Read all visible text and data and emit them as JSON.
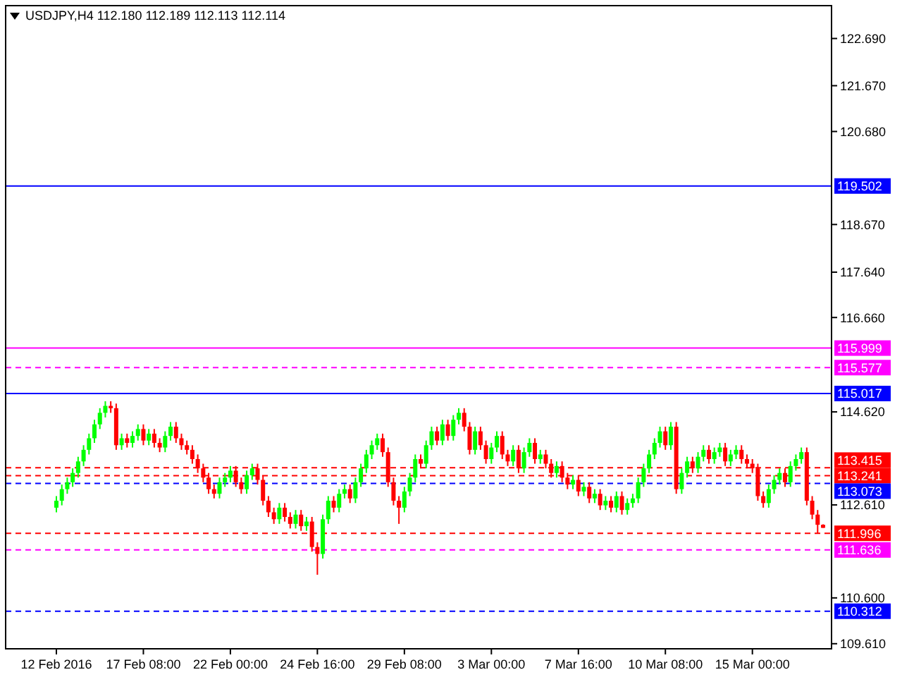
{
  "chart_data": {
    "type": "candlestick",
    "title": "USDJPY,H4  112.180 112.189 112.113 112.114",
    "categories": [
      "12 Feb 2016",
      null,
      null,
      null,
      null,
      null,
      null,
      null,
      null,
      null,
      null,
      null,
      null,
      null,
      null,
      null,
      "17 Feb 08:00",
      null,
      null,
      null,
      null,
      null,
      null,
      null,
      null,
      null,
      null,
      null,
      null,
      null,
      null,
      null,
      "22 Feb 00:00",
      null,
      null,
      null,
      null,
      null,
      null,
      null,
      null,
      null,
      null,
      null,
      null,
      null,
      null,
      null,
      "24 Feb 16:00",
      null,
      null,
      null,
      null,
      null,
      null,
      null,
      null,
      null,
      null,
      null,
      null,
      null,
      null,
      null,
      "29 Feb 08:00",
      null,
      null,
      null,
      null,
      null,
      null,
      null,
      null,
      null,
      null,
      null,
      null,
      null,
      null,
      null,
      "3 Mar 00:00",
      null,
      null,
      null,
      null,
      null,
      null,
      null,
      null,
      null,
      null,
      null,
      null,
      null,
      null,
      null,
      "7 Mar 16:00",
      null,
      null,
      null,
      null,
      null,
      null,
      null,
      null,
      null,
      null,
      null,
      null,
      null,
      null,
      null,
      "10 Mar 08:00",
      null,
      null,
      null,
      null,
      null,
      null,
      null,
      null,
      null,
      null,
      null,
      null,
      null,
      null,
      null,
      "15 Mar 00:00",
      null,
      null,
      null,
      null,
      null,
      null,
      null,
      null,
      null,
      null,
      null,
      null,
      null
    ],
    "ohlc": [
      [
        112.55,
        112.8,
        112.45,
        112.7
      ],
      [
        112.7,
        113.05,
        112.6,
        112.95
      ],
      [
        112.95,
        113.2,
        112.85,
        113.1
      ],
      [
        113.1,
        113.4,
        113.0,
        113.3
      ],
      [
        113.3,
        113.65,
        113.2,
        113.55
      ],
      [
        113.55,
        113.9,
        113.45,
        113.8
      ],
      [
        113.8,
        114.15,
        113.7,
        114.05
      ],
      [
        114.05,
        114.45,
        113.95,
        114.35
      ],
      [
        114.35,
        114.7,
        114.25,
        114.6
      ],
      [
        114.6,
        114.85,
        114.5,
        114.75
      ],
      [
        114.75,
        114.85,
        114.6,
        114.7
      ],
      [
        114.7,
        114.8,
        113.8,
        113.9
      ],
      [
        113.9,
        114.15,
        113.8,
        114.05
      ],
      [
        114.05,
        114.15,
        113.85,
        113.95
      ],
      [
        113.95,
        114.2,
        113.85,
        114.1
      ],
      [
        114.1,
        114.35,
        114.0,
        114.25
      ],
      [
        114.25,
        114.35,
        113.9,
        114.0
      ],
      [
        114.0,
        114.25,
        113.9,
        114.15
      ],
      [
        114.15,
        114.25,
        113.85,
        113.95
      ],
      [
        113.95,
        114.05,
        113.75,
        113.85
      ],
      [
        113.85,
        114.2,
        113.75,
        114.1
      ],
      [
        114.1,
        114.4,
        114.0,
        114.3
      ],
      [
        114.3,
        114.4,
        113.95,
        114.05
      ],
      [
        114.05,
        114.15,
        113.8,
        113.9
      ],
      [
        113.9,
        114.0,
        113.7,
        113.8
      ],
      [
        113.8,
        113.9,
        113.5,
        113.6
      ],
      [
        113.6,
        113.7,
        113.3,
        113.4
      ],
      [
        113.4,
        113.5,
        113.1,
        113.2
      ],
      [
        113.2,
        113.3,
        112.85,
        112.95
      ],
      [
        112.95,
        113.05,
        112.75,
        112.85
      ],
      [
        112.85,
        113.2,
        112.75,
        113.1
      ],
      [
        113.1,
        113.3,
        113.0,
        113.2
      ],
      [
        113.2,
        113.45,
        113.1,
        113.35
      ],
      [
        113.35,
        113.45,
        113.0,
        113.1
      ],
      [
        113.1,
        113.2,
        112.85,
        112.95
      ],
      [
        112.95,
        113.35,
        112.85,
        113.25
      ],
      [
        113.25,
        113.5,
        113.15,
        113.4
      ],
      [
        113.4,
        113.5,
        113.05,
        113.15
      ],
      [
        113.15,
        113.25,
        112.6,
        112.7
      ],
      [
        112.7,
        112.8,
        112.35,
        112.45
      ],
      [
        112.45,
        112.55,
        112.2,
        112.3
      ],
      [
        112.3,
        112.65,
        112.2,
        112.55
      ],
      [
        112.55,
        112.65,
        112.25,
        112.35
      ],
      [
        112.35,
        112.45,
        112.1,
        112.2
      ],
      [
        112.2,
        112.5,
        112.1,
        112.4
      ],
      [
        112.4,
        112.5,
        112.05,
        112.15
      ],
      [
        112.15,
        112.35,
        112.05,
        112.25
      ],
      [
        112.25,
        112.35,
        111.6,
        111.7
      ],
      [
        111.7,
        111.8,
        111.1,
        111.55
      ],
      [
        111.55,
        112.4,
        111.45,
        112.3
      ],
      [
        112.3,
        112.8,
        112.2,
        112.7
      ],
      [
        112.7,
        112.8,
        112.45,
        112.55
      ],
      [
        112.55,
        112.95,
        112.45,
        112.85
      ],
      [
        112.85,
        113.05,
        112.75,
        112.95
      ],
      [
        112.95,
        113.05,
        112.65,
        112.75
      ],
      [
        112.75,
        113.2,
        112.65,
        113.1
      ],
      [
        113.1,
        113.5,
        113.0,
        113.4
      ],
      [
        113.4,
        113.8,
        113.3,
        113.7
      ],
      [
        113.7,
        114.0,
        113.6,
        113.9
      ],
      [
        113.9,
        114.15,
        113.8,
        114.05
      ],
      [
        114.05,
        114.15,
        113.65,
        113.75
      ],
      [
        113.75,
        113.85,
        113.0,
        113.1
      ],
      [
        113.1,
        113.2,
        112.6,
        112.7
      ],
      [
        112.7,
        112.8,
        112.2,
        112.55
      ],
      [
        112.55,
        113.0,
        112.45,
        112.9
      ],
      [
        112.9,
        113.3,
        112.8,
        113.2
      ],
      [
        113.2,
        113.7,
        113.1,
        113.6
      ],
      [
        113.6,
        113.7,
        113.4,
        113.5
      ],
      [
        113.5,
        114.0,
        113.4,
        113.9
      ],
      [
        113.9,
        114.3,
        113.8,
        114.2
      ],
      [
        114.2,
        114.3,
        113.9,
        114.0
      ],
      [
        114.0,
        114.45,
        113.9,
        114.35
      ],
      [
        114.35,
        114.45,
        114.0,
        114.1
      ],
      [
        114.1,
        114.55,
        114.0,
        114.45
      ],
      [
        114.45,
        114.7,
        114.35,
        114.6
      ],
      [
        114.6,
        114.7,
        114.2,
        114.3
      ],
      [
        114.3,
        114.4,
        113.7,
        113.8
      ],
      [
        113.8,
        114.3,
        113.7,
        114.2
      ],
      [
        114.2,
        114.3,
        113.8,
        113.9
      ],
      [
        113.9,
        114.0,
        113.5,
        113.6
      ],
      [
        113.6,
        113.95,
        113.5,
        113.85
      ],
      [
        113.85,
        114.2,
        113.75,
        114.1
      ],
      [
        114.1,
        114.2,
        113.6,
        113.7
      ],
      [
        113.7,
        113.8,
        113.45,
        113.55
      ],
      [
        113.55,
        113.9,
        113.45,
        113.8
      ],
      [
        113.8,
        113.9,
        113.3,
        113.4
      ],
      [
        113.4,
        113.85,
        113.3,
        113.75
      ],
      [
        113.75,
        114.05,
        113.65,
        113.95
      ],
      [
        113.95,
        114.05,
        113.5,
        113.6
      ],
      [
        113.6,
        113.8,
        113.5,
        113.7
      ],
      [
        113.7,
        113.8,
        113.4,
        113.5
      ],
      [
        113.5,
        113.6,
        113.2,
        113.3
      ],
      [
        113.3,
        113.55,
        113.2,
        113.45
      ],
      [
        113.45,
        113.55,
        113.1,
        113.2
      ],
      [
        113.2,
        113.3,
        112.95,
        113.05
      ],
      [
        113.05,
        113.25,
        112.95,
        113.15
      ],
      [
        113.15,
        113.25,
        112.8,
        112.9
      ],
      [
        112.9,
        113.1,
        112.8,
        113.0
      ],
      [
        113.0,
        113.1,
        112.65,
        112.75
      ],
      [
        112.75,
        112.95,
        112.65,
        112.85
      ],
      [
        112.85,
        112.95,
        112.5,
        112.6
      ],
      [
        112.6,
        112.8,
        112.5,
        112.7
      ],
      [
        112.7,
        112.8,
        112.45,
        112.55
      ],
      [
        112.55,
        112.9,
        112.45,
        112.8
      ],
      [
        112.8,
        112.9,
        112.4,
        112.5
      ],
      [
        112.5,
        112.75,
        112.4,
        112.65
      ],
      [
        112.65,
        112.85,
        112.55,
        112.75
      ],
      [
        112.75,
        113.2,
        112.65,
        113.1
      ],
      [
        113.1,
        113.5,
        113.0,
        113.4
      ],
      [
        113.4,
        113.8,
        113.3,
        113.7
      ],
      [
        113.7,
        114.05,
        113.6,
        113.95
      ],
      [
        113.95,
        114.3,
        113.85,
        114.2
      ],
      [
        114.2,
        114.3,
        113.8,
        113.9
      ],
      [
        113.9,
        114.4,
        113.8,
        114.3
      ],
      [
        114.3,
        114.4,
        112.85,
        112.95
      ],
      [
        112.95,
        113.4,
        112.85,
        113.3
      ],
      [
        113.3,
        113.65,
        113.2,
        113.55
      ],
      [
        113.55,
        113.65,
        113.3,
        113.4
      ],
      [
        113.4,
        113.75,
        113.3,
        113.65
      ],
      [
        113.65,
        113.9,
        113.55,
        113.8
      ],
      [
        113.8,
        113.9,
        113.5,
        113.6
      ],
      [
        113.6,
        113.85,
        113.5,
        113.75
      ],
      [
        113.75,
        113.95,
        113.65,
        113.85
      ],
      [
        113.85,
        113.95,
        113.45,
        113.55
      ],
      [
        113.55,
        113.8,
        113.45,
        113.7
      ],
      [
        113.7,
        113.9,
        113.6,
        113.8
      ],
      [
        113.8,
        113.9,
        113.5,
        113.6
      ],
      [
        113.6,
        113.7,
        113.4,
        113.5
      ],
      [
        113.5,
        113.6,
        113.3,
        113.4
      ],
      [
        113.4,
        113.5,
        112.7,
        112.8
      ],
      [
        112.8,
        112.9,
        112.55,
        112.65
      ],
      [
        112.65,
        113.05,
        112.55,
        112.95
      ],
      [
        112.95,
        113.25,
        112.85,
        113.15
      ],
      [
        113.15,
        113.4,
        113.05,
        113.3
      ],
      [
        113.3,
        113.4,
        113.0,
        113.1
      ],
      [
        113.1,
        113.55,
        113.0,
        113.45
      ],
      [
        113.45,
        113.7,
        113.35,
        113.6
      ],
      [
        113.6,
        113.85,
        113.5,
        113.75
      ],
      [
        113.75,
        113.85,
        112.6,
        112.7
      ],
      [
        112.7,
        112.8,
        112.3,
        112.4
      ],
      [
        112.4,
        112.5,
        112.0,
        112.18
      ],
      [
        112.18,
        112.189,
        112.113,
        112.114
      ]
    ],
    "colors": [
      "#00ff00",
      "#00ff00",
      "#00ff00",
      "#00ff00",
      "#00ff00",
      "#00ff00",
      "#00ff00",
      "#00ff00",
      "#00ff00",
      "#00ff00",
      "#ff0000",
      "#ff0000",
      "#00ff00",
      "#ff0000",
      "#00ff00",
      "#00ff00",
      "#ff0000",
      "#00ff00",
      "#ff0000",
      "#ff0000",
      "#00ff00",
      "#00ff00",
      "#ff0000",
      "#ff0000",
      "#ff0000",
      "#ff0000",
      "#ff0000",
      "#ff0000",
      "#ff0000",
      "#ff0000",
      "#00ff00",
      "#00ff00",
      "#00ff00",
      "#ff0000",
      "#ff0000",
      "#00ff00",
      "#00ff00",
      "#ff0000",
      "#ff0000",
      "#ff0000",
      "#ff0000",
      "#00ff00",
      "#ff0000",
      "#ff0000",
      "#00ff00",
      "#ff0000",
      "#00ff00",
      "#ff0000",
      "#ff0000",
      "#00ff00",
      "#00ff00",
      "#ff0000",
      "#00ff00",
      "#00ff00",
      "#ff0000",
      "#00ff00",
      "#00ff00",
      "#00ff00",
      "#00ff00",
      "#00ff00",
      "#ff0000",
      "#ff0000",
      "#ff0000",
      "#ff0000",
      "#00ff00",
      "#00ff00",
      "#00ff00",
      "#ff0000",
      "#00ff00",
      "#00ff00",
      "#ff0000",
      "#00ff00",
      "#ff0000",
      "#00ff00",
      "#00ff00",
      "#ff0000",
      "#ff0000",
      "#00ff00",
      "#ff0000",
      "#ff0000",
      "#00ff00",
      "#00ff00",
      "#ff0000",
      "#ff0000",
      "#00ff00",
      "#ff0000",
      "#00ff00",
      "#00ff00",
      "#ff0000",
      "#00ff00",
      "#ff0000",
      "#ff0000",
      "#00ff00",
      "#ff0000",
      "#ff0000",
      "#00ff00",
      "#ff0000",
      "#00ff00",
      "#ff0000",
      "#00ff00",
      "#ff0000",
      "#00ff00",
      "#ff0000",
      "#00ff00",
      "#ff0000",
      "#00ff00",
      "#00ff00",
      "#00ff00",
      "#00ff00",
      "#00ff00",
      "#00ff00",
      "#00ff00",
      "#ff0000",
      "#00ff00",
      "#ff0000",
      "#00ff00",
      "#00ff00",
      "#ff0000",
      "#00ff00",
      "#00ff00",
      "#ff0000",
      "#00ff00",
      "#00ff00",
      "#ff0000",
      "#00ff00",
      "#00ff00",
      "#ff0000",
      "#ff0000",
      "#ff0000",
      "#ff0000",
      "#ff0000",
      "#00ff00",
      "#00ff00",
      "#00ff00",
      "#ff0000",
      "#00ff00",
      "#00ff00",
      "#00ff00",
      "#ff0000",
      "#ff0000",
      "#ff0000",
      "#ff0000"
    ],
    "ylim": [
      109.5,
      123.4
    ],
    "yticks": [
      {
        "value": 109.61,
        "label": "109.610"
      },
      {
        "value": 110.6,
        "label": "110.600"
      },
      {
        "value": 112.61,
        "label": "112.610"
      },
      {
        "value": 114.62,
        "label": "114.620"
      },
      {
        "value": 116.66,
        "label": "116.660"
      },
      {
        "value": 117.64,
        "label": "117.640"
      },
      {
        "value": 118.67,
        "label": "118.670"
      },
      {
        "value": 120.68,
        "label": "120.680"
      },
      {
        "value": 121.67,
        "label": "121.670"
      },
      {
        "value": 122.69,
        "label": "122.690"
      }
    ],
    "ref_lines": [
      {
        "axis": "y",
        "value": 119.502,
        "label": "119.502",
        "color": "#0000ff",
        "line_style": "solid"
      },
      {
        "axis": "y",
        "value": 115.999,
        "label": "115.999",
        "color": "#ff00ff",
        "line_style": "solid"
      },
      {
        "axis": "y",
        "value": 115.577,
        "label": "115.577",
        "color": "#ff00ff",
        "line_style": "dashed"
      },
      {
        "axis": "y",
        "value": 115.017,
        "label": "115.017",
        "color": "#0000ff",
        "line_style": "solid"
      },
      {
        "axis": "y",
        "value": 113.415,
        "label": "113.415",
        "color": "#ff0000",
        "line_style": "dashed"
      },
      {
        "axis": "y",
        "value": 113.241,
        "label": "113.241",
        "color": "#ff0000",
        "line_style": "dashed"
      },
      {
        "axis": "y",
        "value": 113.073,
        "label": "113.073",
        "color": "#0000ff",
        "line_style": "dashed"
      },
      {
        "axis": "y",
        "value": 111.996,
        "label": "111.996",
        "color": "#ff0000",
        "line_style": "dashed"
      },
      {
        "axis": "y",
        "value": 111.636,
        "label": "111.636",
        "color": "#ff00ff",
        "line_style": "dashed"
      },
      {
        "axis": "y",
        "value": 110.312,
        "label": "110.312",
        "color": "#0000ff",
        "line_style": "dashed"
      }
    ],
    "grid": false
  }
}
